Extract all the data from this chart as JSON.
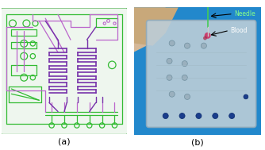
{
  "fig_width": 3.34,
  "fig_height": 1.89,
  "dpi": 100,
  "background_color": "#ffffff",
  "panel_a": {
    "label": "(a)",
    "bg_color": "#eef6ee",
    "border_color": "#66bb66",
    "green": "#33bb33",
    "purple": "#bb66cc",
    "dark_purple": "#7733aa",
    "teal": "#006688"
  },
  "panel_b": {
    "label": "(b)",
    "bg_blue": "#2288cc",
    "chip_color": "#c5d5e0",
    "finger_color": "#d0b090",
    "needle_label": "Needle",
    "blood_label": "Blood",
    "needle_color": "#55cc55",
    "annotation_color": "#000000",
    "needle_text_color": "#88ff88",
    "blood_text_color": "#ffffff",
    "dot_color": "#2244aa"
  }
}
